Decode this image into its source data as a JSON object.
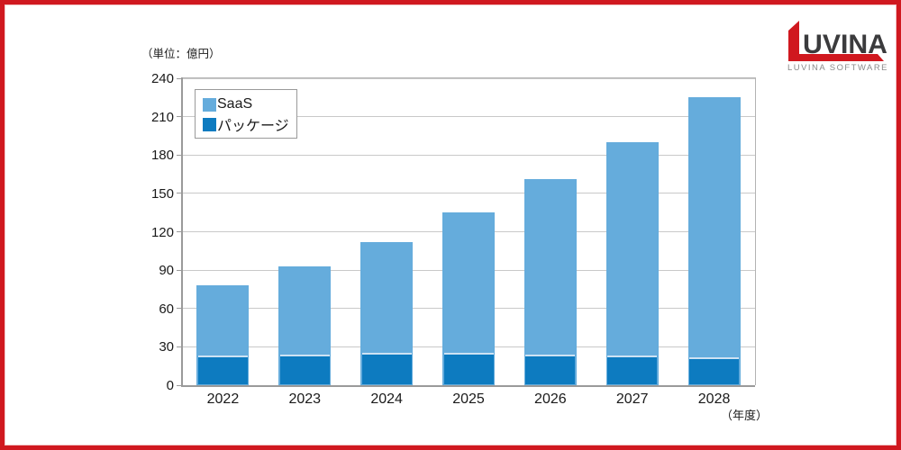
{
  "chart_data": {
    "type": "bar",
    "stacked": true,
    "unit_label": "（単位：億円）",
    "xlabel": "（年度）",
    "categories": [
      "2022",
      "2023",
      "2024",
      "2025",
      "2026",
      "2027",
      "2028"
    ],
    "series": [
      {
        "name": "SaaS",
        "color": "#65acdc",
        "values": [
          55,
          69,
          87,
          110,
          137,
          167,
          203
        ]
      },
      {
        "name": "パッケージ",
        "color": "#0d7bc0",
        "values": [
          23,
          24,
          25,
          25,
          24,
          23,
          22
        ]
      }
    ],
    "totals": [
      78,
      93,
      112,
      135,
      161,
      190,
      225
    ],
    "ylim": [
      0,
      240
    ],
    "yticks": [
      0,
      30,
      60,
      90,
      120,
      150,
      180,
      210,
      240
    ],
    "grid": true,
    "legend_position": "top-left"
  },
  "legend": {
    "items": [
      {
        "label": "SaaS",
        "color": "#65acdc"
      },
      {
        "label": "パッケージ",
        "color": "#0d7bc0"
      }
    ]
  },
  "logo": {
    "brand": "UVINA",
    "subtitle": "LUVINA SOFTWARE",
    "accent_color": "#d0181f",
    "text_color": "#3b3b3d",
    "subtitle_color": "#8a8a8a"
  },
  "frame": {
    "border_color": "#d0181f"
  }
}
